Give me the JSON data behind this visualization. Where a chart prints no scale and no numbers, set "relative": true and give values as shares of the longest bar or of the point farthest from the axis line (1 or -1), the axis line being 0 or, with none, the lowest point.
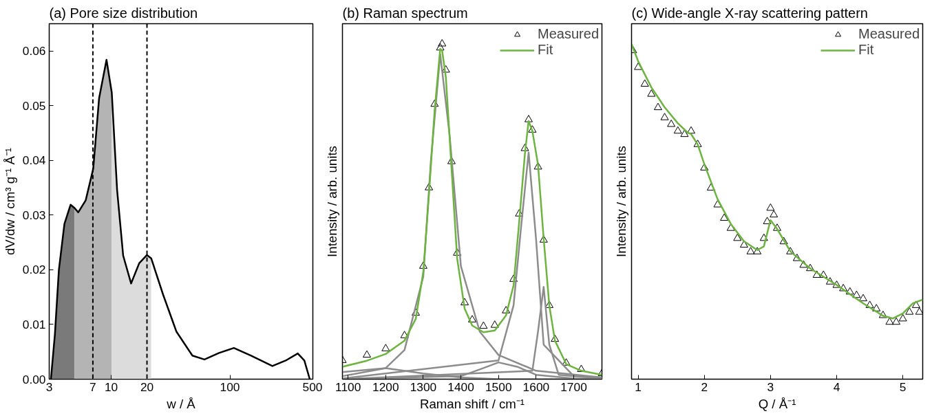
{
  "chart_data": [
    {
      "type": "line",
      "title": "(a) Pore size distribution",
      "xlabel": "w / Å",
      "ylabel": "dV/dw / cm³ g⁻¹ Å⁻¹",
      "log": "x",
      "xlim": [
        3,
        500
      ],
      "ylim": [
        0,
        0.065
      ],
      "xticks": [
        3,
        7,
        10,
        20,
        100,
        500
      ],
      "yticks": [
        {
          "value": 0,
          "label": "0.00"
        },
        {
          "value": 0.01,
          "label": "0.01"
        },
        {
          "value": 0.02,
          "label": "0.02"
        },
        {
          "value": 0.03,
          "label": "0.03"
        },
        {
          "value": 0.04,
          "label": "0.04"
        },
        {
          "value": 0.05,
          "label": "0.05"
        },
        {
          "value": 0.06,
          "label": "0.06"
        }
      ],
      "ref_lines": [
        {
          "axis": "x",
          "value": 7,
          "color": "#000000",
          "line_style": "dashed"
        },
        {
          "axis": "x",
          "value": 20,
          "color": "#000000",
          "line_style": "dashed"
        }
      ],
      "series": [
        {
          "type": "area",
          "color": "#7a7a7a",
          "x": [
            3.1,
            3.35,
            3.62,
            4.03,
            4.54,
            4.9
          ],
          "values": [
            0,
            0.0082,
            0.02,
            0.0284,
            0.0319,
            0.0313
          ]
        },
        {
          "type": "area",
          "color": "#b4b4b4",
          "x": [
            4.9,
            5.27,
            6.09,
            7.05,
            7.9,
            9.12,
            10.1
          ],
          "values": [
            0.0313,
            0.0305,
            0.0327,
            0.0385,
            0.0514,
            0.0584,
            0.0524
          ]
        },
        {
          "type": "area",
          "color": "#dcdcdc",
          "x": [
            10.1,
            11.2,
            12.6,
            14.7,
            17.2,
            20.0,
            21.7
          ],
          "values": [
            0.0524,
            0.0346,
            0.0226,
            0.0175,
            0.0212,
            0.0227,
            0.0221
          ]
        },
        {
          "color": "#000000",
          "x": [
            3.1,
            3.35,
            3.62,
            4.03,
            4.54,
            4.9,
            5.27,
            6.09,
            7.05,
            7.9,
            9.12,
            10.1,
            11.2,
            12.6,
            14.7,
            17.2,
            20.0,
            21.7,
            27.4,
            35.4,
            48.3,
            61,
            81,
            108,
            151,
            228,
            295,
            373,
            424,
            471
          ],
          "values": [
            0,
            0.0082,
            0.02,
            0.0284,
            0.0319,
            0.0313,
            0.0305,
            0.0327,
            0.0385,
            0.0514,
            0.0584,
            0.0524,
            0.0346,
            0.0226,
            0.0175,
            0.0212,
            0.0227,
            0.0221,
            0.0154,
            0.0087,
            0.0043,
            0.0036,
            0.0048,
            0.0057,
            0.0043,
            0.0024,
            0.0034,
            0.0047,
            0.0034,
            0
          ]
        }
      ]
    },
    {
      "type": "line",
      "title": "(b) Raman spectrum",
      "xlabel": "Raman shift / cm⁻¹",
      "ylabel": "Intensity / arb. units",
      "relative": true,
      "xlim": [
        1085,
        1775
      ],
      "xticks": [
        1100,
        1200,
        1300,
        1400,
        1500,
        1600,
        1700
      ],
      "legend": "top right",
      "series": [
        {
          "type": "line",
          "color": "#8c8c8c",
          "x": [
            1085,
            1200,
            1250,
            1300,
            1320,
            1345,
            1370,
            1400,
            1450,
            1500,
            1600,
            1775
          ],
          "values": [
            0.009,
            0.033,
            0.087,
            0.306,
            0.649,
            0.969,
            0.727,
            0.337,
            0.142,
            0.072,
            0.025,
            0.005
          ]
        },
        {
          "type": "line",
          "color": "#8c8c8c",
          "x": [
            1085,
            1200,
            1300,
            1400,
            1500,
            1775
          ],
          "values": [
            0.021,
            0.033,
            0.017,
            0.005,
            0,
            0
          ]
        },
        {
          "type": "line",
          "color": "#8c8c8c",
          "x": [
            1085,
            1400,
            1450,
            1500,
            1550,
            1600,
            1700,
            1775
          ],
          "values": [
            0,
            0.009,
            0.029,
            0.05,
            0.037,
            0.013,
            0.002,
            0
          ]
        },
        {
          "type": "line",
          "color": "#8c8c8c",
          "x": [
            1085,
            1500,
            1540,
            1560,
            1580,
            1600,
            1620,
            1700,
            1775
          ],
          "values": [
            0.002,
            0.056,
            0.22,
            0.454,
            0.676,
            0.415,
            0.103,
            0.009,
            0.003
          ]
        },
        {
          "type": "line",
          "color": "#8c8c8c",
          "x": [
            1085,
            1590,
            1605,
            1620,
            1635,
            1660,
            1775
          ],
          "values": [
            0,
            0.025,
            0.142,
            0.275,
            0.103,
            0.013,
            0.002
          ]
        },
        {
          "type": "scatter",
          "name": "Measured",
          "color": "#000000",
          "marker": "triangle",
          "x": [
            1085,
            1150,
            1200,
            1250,
            1280,
            1300,
            1315,
            1330,
            1345,
            1350,
            1360,
            1375,
            1390,
            1410,
            1430,
            1460,
            1490,
            1520,
            1540,
            1555,
            1570,
            1580,
            1590,
            1605,
            1620,
            1635,
            1650,
            1680,
            1720,
            1775
          ],
          "values": [
            0.056,
            0.072,
            0.091,
            0.13,
            0.197,
            0.337,
            0.571,
            0.82,
            0.988,
            1.0,
            0.922,
            0.649,
            0.376,
            0.228,
            0.177,
            0.158,
            0.161,
            0.204,
            0.298,
            0.493,
            0.688,
            0.774,
            0.743,
            0.633,
            0.415,
            0.22,
            0.119,
            0.048,
            0.029,
            0.017
          ]
        },
        {
          "name": "Fit",
          "color": "#6db33f",
          "x": [
            1085,
            1150,
            1200,
            1250,
            1280,
            1300,
            1315,
            1330,
            1345,
            1350,
            1360,
            1375,
            1390,
            1410,
            1430,
            1460,
            1490,
            1520,
            1540,
            1555,
            1570,
            1580,
            1590,
            1605,
            1620,
            1635,
            1650,
            1680,
            1720,
            1775
          ],
          "values": [
            0.037,
            0.055,
            0.075,
            0.115,
            0.18,
            0.32,
            0.55,
            0.8,
            0.985,
            0.98,
            0.9,
            0.63,
            0.36,
            0.21,
            0.16,
            0.14,
            0.145,
            0.19,
            0.28,
            0.47,
            0.67,
            0.77,
            0.74,
            0.64,
            0.42,
            0.22,
            0.115,
            0.045,
            0.025,
            0.013
          ]
        }
      ]
    },
    {
      "type": "line",
      "title": "(c) Wide-angle X-ray scattering pattern",
      "xlabel": "Q / Å⁻¹",
      "ylabel": "Intensity / arb. units",
      "relative": true,
      "xlim": [
        0.9,
        5.3
      ],
      "xticks": [
        1,
        2,
        3,
        4,
        5
      ],
      "legend": "top right",
      "series": [
        {
          "type": "scatter",
          "name": "Measured",
          "color": "#000000",
          "marker": "triangle",
          "x": [
            0.92,
            1.0,
            1.1,
            1.2,
            1.3,
            1.4,
            1.5,
            1.6,
            1.7,
            1.8,
            1.9,
            2.0,
            2.1,
            2.2,
            2.3,
            2.4,
            2.5,
            2.6,
            2.7,
            2.8,
            2.9,
            2.95,
            3.0,
            3.05,
            3.1,
            3.2,
            3.3,
            3.4,
            3.5,
            3.6,
            3.7,
            3.8,
            3.9,
            4.0,
            4.1,
            4.2,
            4.3,
            4.4,
            4.5,
            4.6,
            4.7,
            4.8,
            4.9,
            5.0,
            5.1,
            5.2,
            5.25
          ],
          "values": [
            0.98,
            0.93,
            0.88,
            0.85,
            0.81,
            0.78,
            0.76,
            0.74,
            0.73,
            0.74,
            0.7,
            0.63,
            0.57,
            0.52,
            0.48,
            0.45,
            0.42,
            0.4,
            0.38,
            0.38,
            0.42,
            0.47,
            0.51,
            0.49,
            0.45,
            0.41,
            0.38,
            0.36,
            0.34,
            0.33,
            0.31,
            0.31,
            0.29,
            0.28,
            0.27,
            0.26,
            0.25,
            0.24,
            0.22,
            0.21,
            0.19,
            0.17,
            0.17,
            0.18,
            0.2,
            0.22,
            0.2
          ]
        },
        {
          "name": "Fit",
          "color": "#6db33f",
          "x": [
            0.9,
            1.0,
            1.2,
            1.4,
            1.6,
            1.75,
            1.8,
            1.9,
            2.0,
            2.2,
            2.4,
            2.6,
            2.8,
            2.9,
            3.0,
            3.1,
            3.3,
            3.6,
            4.0,
            4.4,
            4.7,
            4.85,
            5.0,
            5.15,
            5.3
          ],
          "values": [
            1.0,
            0.948,
            0.87,
            0.811,
            0.763,
            0.735,
            0.731,
            0.7,
            0.641,
            0.537,
            0.463,
            0.411,
            0.385,
            0.396,
            0.474,
            0.448,
            0.381,
            0.33,
            0.281,
            0.226,
            0.189,
            0.181,
            0.196,
            0.226,
            0.237
          ]
        }
      ]
    }
  ]
}
